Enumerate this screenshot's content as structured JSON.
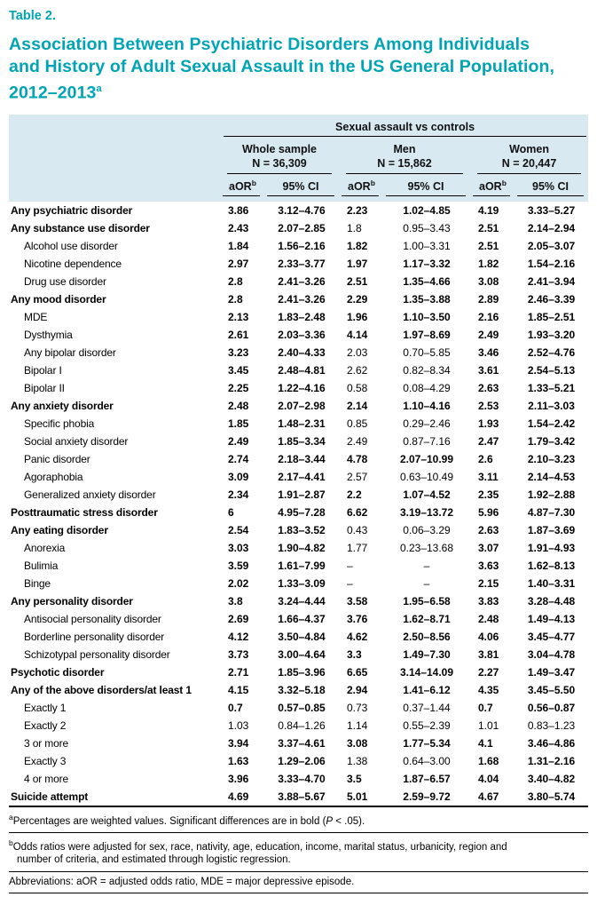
{
  "table_label": "Table 2.",
  "title_lines": [
    "Association Between Psychiatric Disorders Among Individuals",
    "and History of Adult Sexual Assault in the US General Population,",
    "2012–2013"
  ],
  "title_sup": "a",
  "colors": {
    "accent_teal": "#00a4b4",
    "header_bg": "#d9e9f1"
  },
  "header": {
    "span_title": "Sexual assault vs controls",
    "aor_label": "aOR",
    "aor_sup": "b",
    "ci_label": "95% CI",
    "groups": [
      {
        "name": "Whole sample",
        "n": "N = 36,309"
      },
      {
        "name": "Men",
        "n": "N = 15,862"
      },
      {
        "name": "Women",
        "n": "N = 20,447"
      }
    ]
  },
  "rows": [
    {
      "label": "Any psychiatric disorder",
      "level": 0,
      "bold_label": true,
      "cells": [
        "3.86",
        "3.12–4.76",
        "2.23",
        "1.02–4.85",
        "4.19",
        "3.33–5.27"
      ],
      "bold": [
        true,
        true,
        true,
        true,
        true,
        true
      ]
    },
    {
      "label": "Any substance use disorder",
      "level": 0,
      "bold_label": true,
      "cells": [
        "2.43",
        "2.07–2.85",
        "1.8",
        "0.95–3.43",
        "2.51",
        "2.14–2.94"
      ],
      "bold": [
        true,
        true,
        false,
        false,
        true,
        true
      ]
    },
    {
      "label": "Alcohol use disorder",
      "level": 1,
      "bold_label": false,
      "cells": [
        "1.84",
        "1.56–2.16",
        "1.82",
        "1.00–3.31",
        "2.51",
        "2.05–3.07"
      ],
      "bold": [
        true,
        true,
        true,
        false,
        true,
        true
      ]
    },
    {
      "label": "Nicotine dependence",
      "level": 1,
      "bold_label": false,
      "cells": [
        "2.97",
        "2.33–3.77",
        "1.97",
        "1.17–3.32",
        "1.82",
        "1.54–2.16"
      ],
      "bold": [
        true,
        true,
        true,
        true,
        true,
        true
      ]
    },
    {
      "label": "Drug use disorder",
      "level": 1,
      "bold_label": false,
      "cells": [
        "2.8",
        "2.41–3.26",
        "2.51",
        "1.35–4.66",
        "3.08",
        "2.41–3.94"
      ],
      "bold": [
        true,
        true,
        true,
        true,
        true,
        true
      ]
    },
    {
      "label": "Any mood disorder",
      "level": 0,
      "bold_label": true,
      "cells": [
        "2.8",
        "2.41–3.26",
        "2.29",
        "1.35–3.88",
        "2.89",
        "2.46–3.39"
      ],
      "bold": [
        true,
        true,
        true,
        true,
        true,
        true
      ]
    },
    {
      "label": "MDE",
      "level": 1,
      "bold_label": false,
      "cells": [
        "2.13",
        "1.83–2.48",
        "1.96",
        "1.10–3.50",
        "2.16",
        "1.85–2.51"
      ],
      "bold": [
        true,
        true,
        true,
        true,
        true,
        true
      ]
    },
    {
      "label": "Dysthymia",
      "level": 1,
      "bold_label": false,
      "cells": [
        "2.61",
        "2.03–3.36",
        "4.14",
        "1.97–8.69",
        "2.49",
        "1.93–3.20"
      ],
      "bold": [
        true,
        true,
        true,
        true,
        true,
        true
      ]
    },
    {
      "label": "Any bipolar disorder",
      "level": 1,
      "bold_label": false,
      "cells": [
        "3.23",
        "2.40–4.33",
        "2.03",
        "0.70–5.85",
        "3.46",
        "2.52–4.76"
      ],
      "bold": [
        true,
        true,
        false,
        false,
        true,
        true
      ]
    },
    {
      "label": "Bipolar I",
      "level": 1,
      "bold_label": false,
      "cells": [
        "3.45",
        "2.48–4.81",
        "2.62",
        "0.82–8.34",
        "3.61",
        "2.54–5.13"
      ],
      "bold": [
        true,
        true,
        false,
        false,
        true,
        true
      ]
    },
    {
      "label": "Bipolar II",
      "level": 1,
      "bold_label": false,
      "cells": [
        "2.25",
        "1.22–4.16",
        "0.58",
        "0.08–4.29",
        "2.63",
        "1.33–5.21"
      ],
      "bold": [
        true,
        true,
        false,
        false,
        true,
        true
      ]
    },
    {
      "label": "Any anxiety disorder",
      "level": 0,
      "bold_label": true,
      "cells": [
        "2.48",
        "2.07–2.98",
        "2.14",
        "1.10–4.16",
        "2.53",
        "2.11–3.03"
      ],
      "bold": [
        true,
        true,
        true,
        true,
        true,
        true
      ]
    },
    {
      "label": "Specific phobia",
      "level": 1,
      "bold_label": false,
      "cells": [
        "1.85",
        "1.48–2.31",
        "0.85",
        "0.29–2.46",
        "1.93",
        "1.54–2.42"
      ],
      "bold": [
        true,
        true,
        false,
        false,
        true,
        true
      ]
    },
    {
      "label": "Social anxiety disorder",
      "level": 1,
      "bold_label": false,
      "cells": [
        "2.49",
        "1.85–3.34",
        "2.49",
        "0.87–7.16",
        "2.47",
        "1.79–3.42"
      ],
      "bold": [
        true,
        true,
        false,
        false,
        true,
        true
      ]
    },
    {
      "label": "Panic disorder",
      "level": 1,
      "bold_label": false,
      "cells": [
        "2.74",
        "2.18–3.44",
        "4.78",
        "2.07–10.99",
        "2.6",
        "2.10–3.23"
      ],
      "bold": [
        true,
        true,
        true,
        true,
        true,
        true
      ]
    },
    {
      "label": "Agoraphobia",
      "level": 1,
      "bold_label": false,
      "cells": [
        "3.09",
        "2.17–4.41",
        "2.57",
        "0.63–10.49",
        "3.11",
        "2.14–4.53"
      ],
      "bold": [
        true,
        true,
        false,
        false,
        true,
        true
      ]
    },
    {
      "label": "Generalized anxiety disorder",
      "level": 1,
      "bold_label": false,
      "cells": [
        "2.34",
        "1.91–2.87",
        "2.2",
        "1.07–4.52",
        "2.35",
        "1.92–2.88"
      ],
      "bold": [
        true,
        true,
        true,
        true,
        true,
        true
      ]
    },
    {
      "label": "Posttraumatic stress disorder",
      "level": 0,
      "bold_label": true,
      "cells": [
        "6",
        "4.95–7.28",
        "6.62",
        "3.19–13.72",
        "5.96",
        "4.87–7.30"
      ],
      "bold": [
        true,
        true,
        true,
        true,
        true,
        true
      ]
    },
    {
      "label": "Any eating disorder",
      "level": 0,
      "bold_label": true,
      "cells": [
        "2.54",
        "1.83–3.52",
        "0.43",
        "0.06–3.29",
        "2.63",
        "1.87–3.69"
      ],
      "bold": [
        true,
        true,
        false,
        false,
        true,
        true
      ]
    },
    {
      "label": "Anorexia",
      "level": 1,
      "bold_label": false,
      "cells": [
        "3.03",
        "1.90–4.82",
        "1.77",
        "0.23–13.68",
        "3.07",
        "1.91–4.93"
      ],
      "bold": [
        true,
        true,
        false,
        false,
        true,
        true
      ]
    },
    {
      "label": "Bulimia",
      "level": 1,
      "bold_label": false,
      "cells": [
        "3.59",
        "1.61–7.99",
        "–",
        "–",
        "3.63",
        "1.62–8.13"
      ],
      "bold": [
        true,
        true,
        false,
        false,
        true,
        true
      ]
    },
    {
      "label": "Binge",
      "level": 1,
      "bold_label": false,
      "cells": [
        "2.02",
        "1.33–3.09",
        "–",
        "–",
        "2.15",
        "1.40–3.31"
      ],
      "bold": [
        true,
        true,
        false,
        false,
        true,
        true
      ]
    },
    {
      "label": "Any personality disorder",
      "level": 0,
      "bold_label": true,
      "cells": [
        "3.8",
        "3.24–4.44",
        "3.58",
        "1.95–6.58",
        "3.83",
        "3.28–4.48"
      ],
      "bold": [
        true,
        true,
        true,
        true,
        true,
        true
      ]
    },
    {
      "label": "Antisocial personality disorder",
      "level": 1,
      "bold_label": false,
      "cells": [
        "2.69",
        "1.66–4.37",
        "3.76",
        "1.62–8.71",
        "2.48",
        "1.49–4.13"
      ],
      "bold": [
        true,
        true,
        true,
        true,
        true,
        true
      ]
    },
    {
      "label": "Borderline personality disorder",
      "level": 1,
      "bold_label": false,
      "cells": [
        "4.12",
        "3.50–4.84",
        "4.62",
        "2.50–8.56",
        "4.06",
        "3.45–4.77"
      ],
      "bold": [
        true,
        true,
        true,
        true,
        true,
        true
      ]
    },
    {
      "label": "Schizotypal personality disorder",
      "level": 1,
      "bold_label": false,
      "cells": [
        "3.73",
        "3.00–4.64",
        "3.3",
        "1.49–7.30",
        "3.81",
        "3.04–4.78"
      ],
      "bold": [
        true,
        true,
        true,
        true,
        true,
        true
      ]
    },
    {
      "label": "Psychotic disorder",
      "level": 0,
      "bold_label": true,
      "cells": [
        "2.71",
        "1.85–3.96",
        "6.65",
        "3.14–14.09",
        "2.27",
        "1.49–3.47"
      ],
      "bold": [
        true,
        true,
        true,
        true,
        true,
        true
      ]
    },
    {
      "label": "Any of the above disorders/at least 1",
      "level": 0,
      "bold_label": true,
      "cells": [
        "4.15",
        "3.32–5.18",
        "2.94",
        "1.41–6.12",
        "4.35",
        "3.45–5.50"
      ],
      "bold": [
        true,
        true,
        true,
        true,
        true,
        true
      ]
    },
    {
      "label": "Exactly 1",
      "level": 1,
      "bold_label": false,
      "cells": [
        "0.7",
        "0.57–0.85",
        "0.73",
        "0.37–1.44",
        "0.7",
        "0.56–0.87"
      ],
      "bold": [
        true,
        true,
        false,
        false,
        true,
        true
      ]
    },
    {
      "label": "Exactly 2",
      "level": 1,
      "bold_label": false,
      "cells": [
        "1.03",
        "0.84–1.26",
        "1.14",
        "0.55–2.39",
        "1.01",
        "0.83–1.23"
      ],
      "bold": [
        false,
        false,
        false,
        false,
        false,
        false
      ]
    },
    {
      "label": "3 or more",
      "level": 1,
      "bold_label": false,
      "cells": [
        "3.94",
        "3.37–4.61",
        "3.08",
        "1.77–5.34",
        "4.1",
        "3.46–4.86"
      ],
      "bold": [
        true,
        true,
        true,
        true,
        true,
        true
      ]
    },
    {
      "label": "Exactly 3",
      "level": 1,
      "bold_label": false,
      "cells": [
        "1.63",
        "1.29–2.06",
        "1.38",
        "0.64–3.00",
        "1.68",
        "1.31–2.16"
      ],
      "bold": [
        true,
        true,
        false,
        false,
        true,
        true
      ]
    },
    {
      "label": "4 or more",
      "level": 1,
      "bold_label": false,
      "cells": [
        "3.96",
        "3.33–4.70",
        "3.5",
        "1.87–6.57",
        "4.04",
        "3.40–4.82"
      ],
      "bold": [
        true,
        true,
        true,
        true,
        true,
        true
      ]
    },
    {
      "label": "Suicide attempt",
      "level": 0,
      "bold_label": true,
      "cells": [
        "4.69",
        "3.88–5.67",
        "5.01",
        "2.59–9.72",
        "4.67",
        "3.80–5.74"
      ],
      "bold": [
        true,
        true,
        true,
        true,
        true,
        true
      ]
    }
  ],
  "footnotes": {
    "a": {
      "marker": "a",
      "pre": "Percentages are weighted values. Significant differences are in bold (",
      "italic": "P",
      "post": " < .05)."
    },
    "b": {
      "marker": "b",
      "line1": "Odds ratios were adjusted for sex, race, nativity, age, education, income, marital status, urbanicity, region and",
      "line2": "number of criteria, and estimated through logistic regression."
    },
    "abbreviations": "Abbreviations: aOR = adjusted odds ratio, MDE = major depressive episode."
  }
}
